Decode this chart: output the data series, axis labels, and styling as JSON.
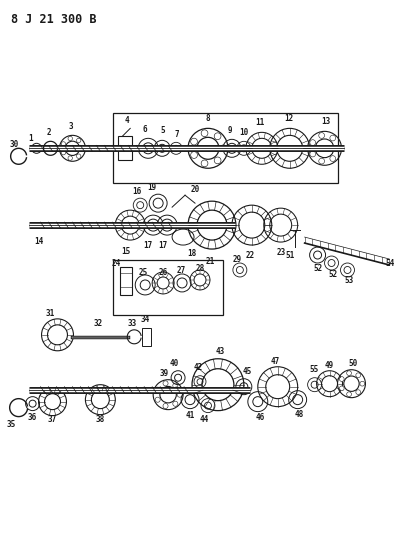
{
  "title": "8 J 21 300 B",
  "bg_color": "#ffffff",
  "line_color": "#1a1a1a"
}
